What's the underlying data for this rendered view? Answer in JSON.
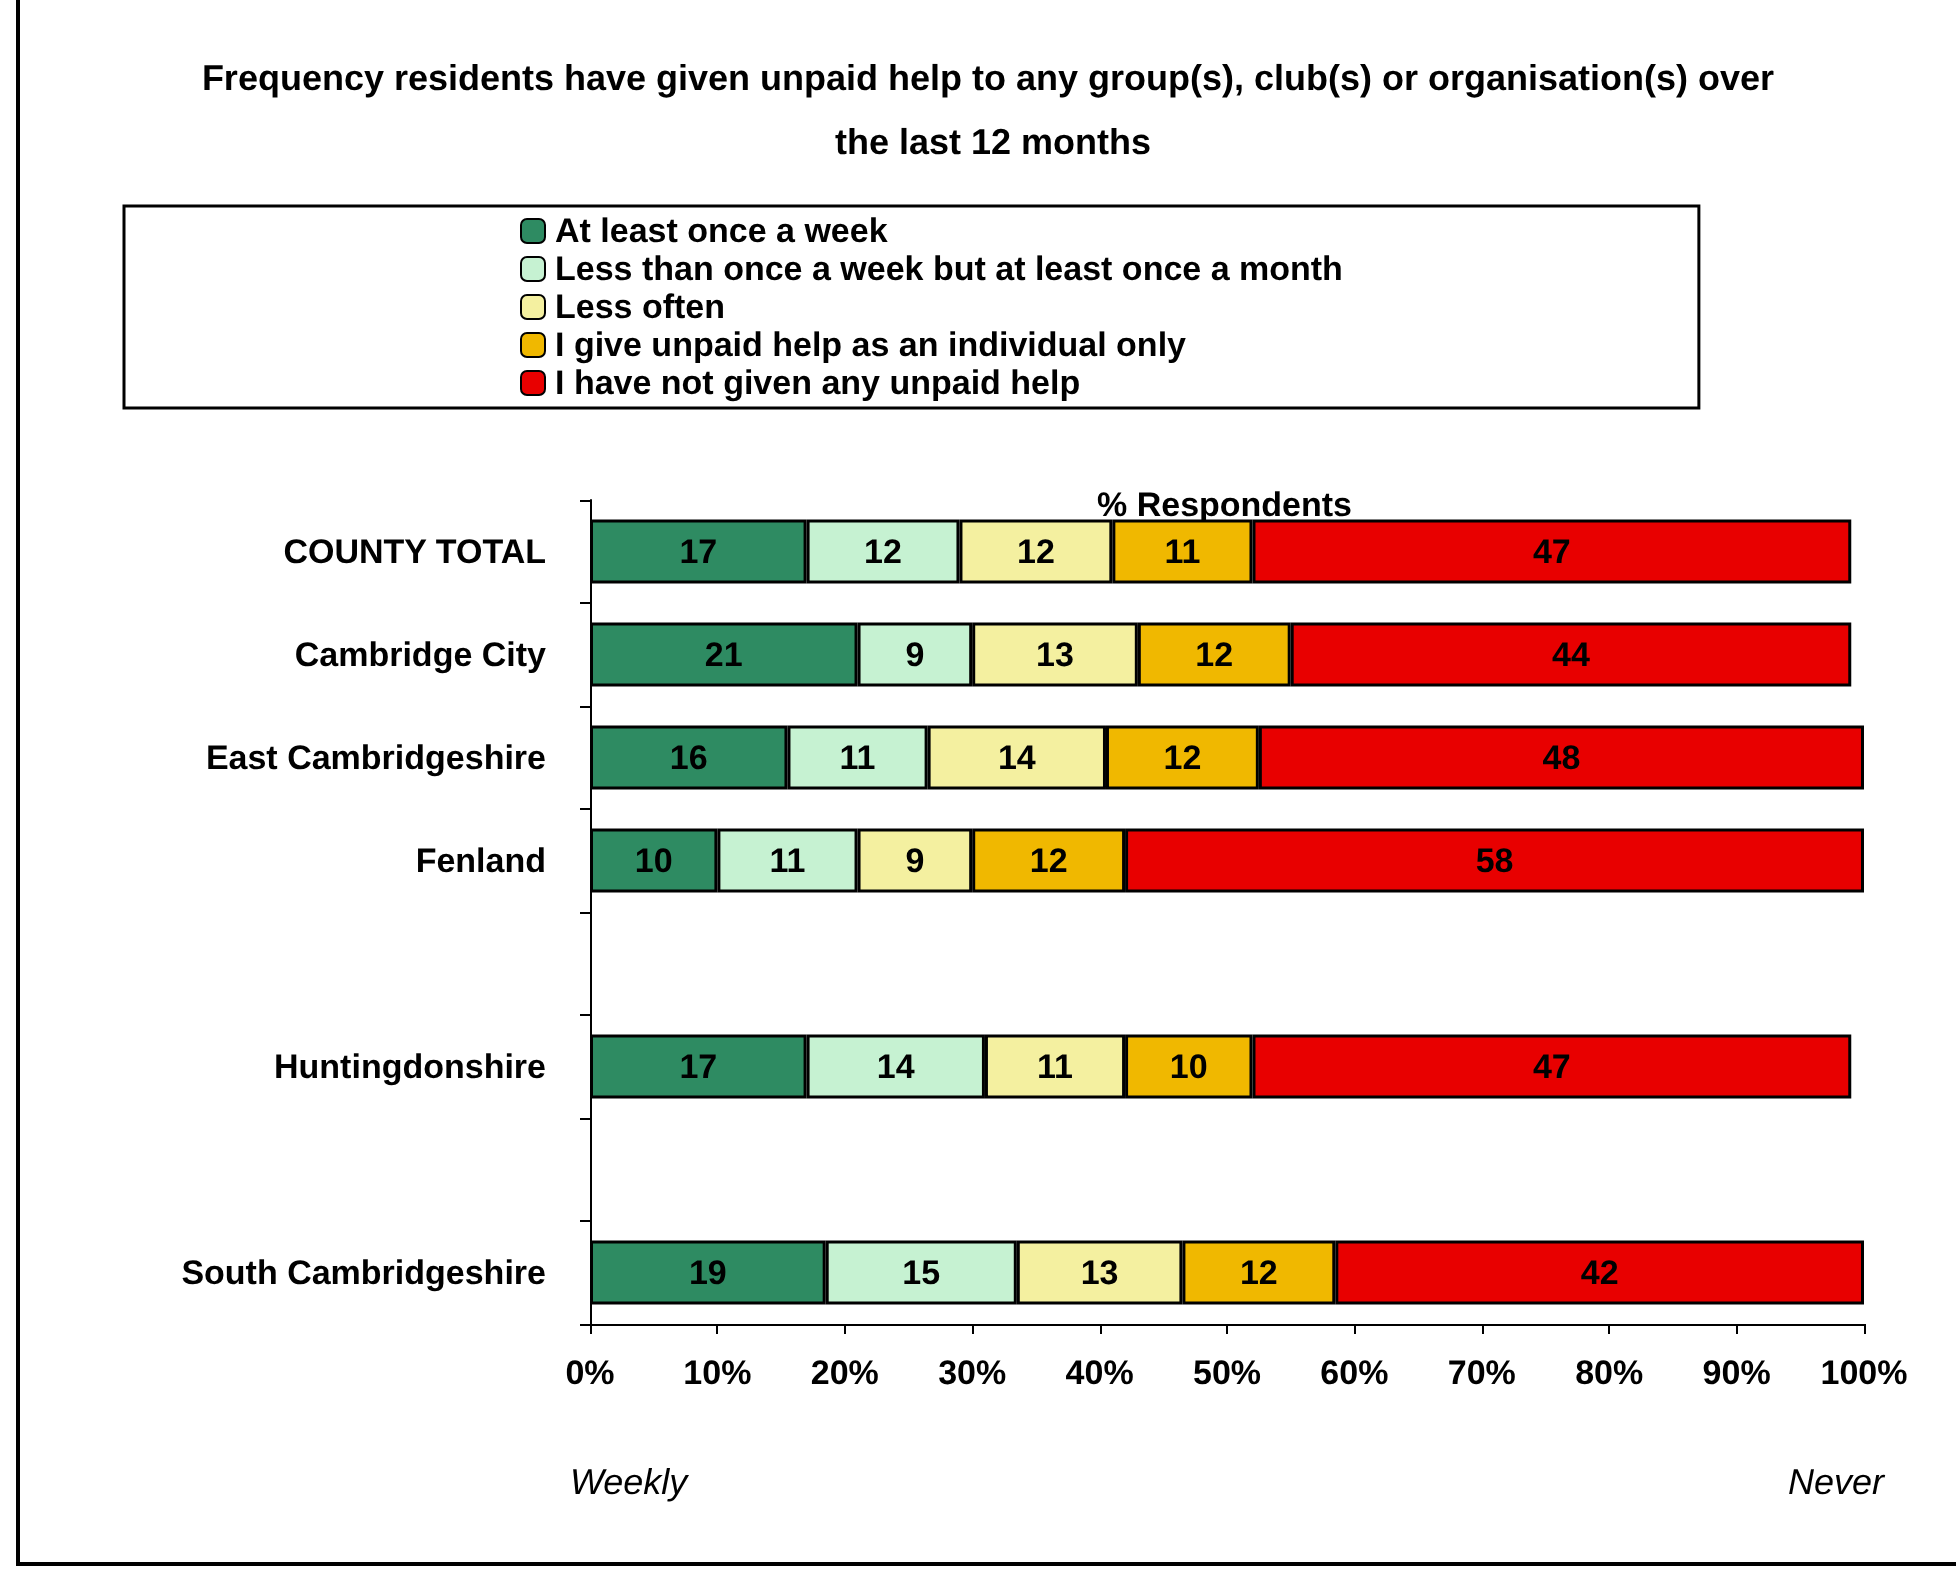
{
  "chart_data": {
    "type": "bar",
    "orientation": "horizontal",
    "stacked": true,
    "title": "Frequency residents have given unpaid help to any group(s), club(s) or organisation(s) over the last 12 months",
    "xlabel": "% Respondents",
    "annotations": [
      "Weekly",
      "Never"
    ],
    "categories": [
      "COUNTY TOTAL",
      "Cambridge City",
      "East Cambridgeshire",
      "Fenland",
      null,
      "Huntingdonshire",
      null,
      "South Cambridgeshire"
    ],
    "series": [
      {
        "name": "At least once a week",
        "color": "#2e8b62",
        "values": [
          17,
          21,
          15.5,
          10,
          null,
          17,
          null,
          18.5
        ],
        "value_labels": [
          "17",
          "21",
          "16",
          "10",
          null,
          "17",
          null,
          "19"
        ]
      },
      {
        "name": "Less than once a week but at least once a month",
        "color": "#c6f2d2",
        "values": [
          12,
          9,
          11,
          11,
          null,
          14,
          null,
          15
        ],
        "value_labels": [
          "12",
          "9",
          "11",
          "11",
          null,
          "14",
          null,
          "15"
        ]
      },
      {
        "name": "Less often",
        "color": "#f4f0a0",
        "values": [
          12,
          13,
          14,
          9,
          null,
          11,
          null,
          13
        ],
        "value_labels": [
          "12",
          "13",
          "14",
          "9",
          null,
          "11",
          null,
          "13"
        ]
      },
      {
        "name": "I give unpaid help as an individual only",
        "color": "#f0b800",
        "values": [
          11,
          12,
          12,
          12,
          null,
          10,
          null,
          12
        ],
        "value_labels": [
          "11",
          "12",
          "12",
          "12",
          null,
          "10",
          null,
          "12"
        ]
      },
      {
        "name": "I have not given any unpaid help",
        "color": "#e80000",
        "values": [
          47,
          44,
          47.5,
          58,
          null,
          47,
          null,
          41.5
        ],
        "value_labels": [
          "47",
          "44",
          "48",
          "58",
          null,
          "47",
          null,
          "42"
        ]
      }
    ],
    "xlim": [
      0,
      100
    ],
    "xticks": [
      {
        "value": 0,
        "label": "0%"
      },
      {
        "value": 10,
        "label": "10%"
      },
      {
        "value": 20,
        "label": "20%"
      },
      {
        "value": 30,
        "label": "30%"
      },
      {
        "value": 40,
        "label": "40%"
      },
      {
        "value": 50,
        "label": "50%"
      },
      {
        "value": 60,
        "label": "60%"
      },
      {
        "value": 70,
        "label": "70%"
      },
      {
        "value": 80,
        "label": "80%"
      },
      {
        "value": 90,
        "label": "90%"
      },
      {
        "value": 100,
        "label": "100%"
      }
    ],
    "grid": false,
    "legend": "top"
  }
}
